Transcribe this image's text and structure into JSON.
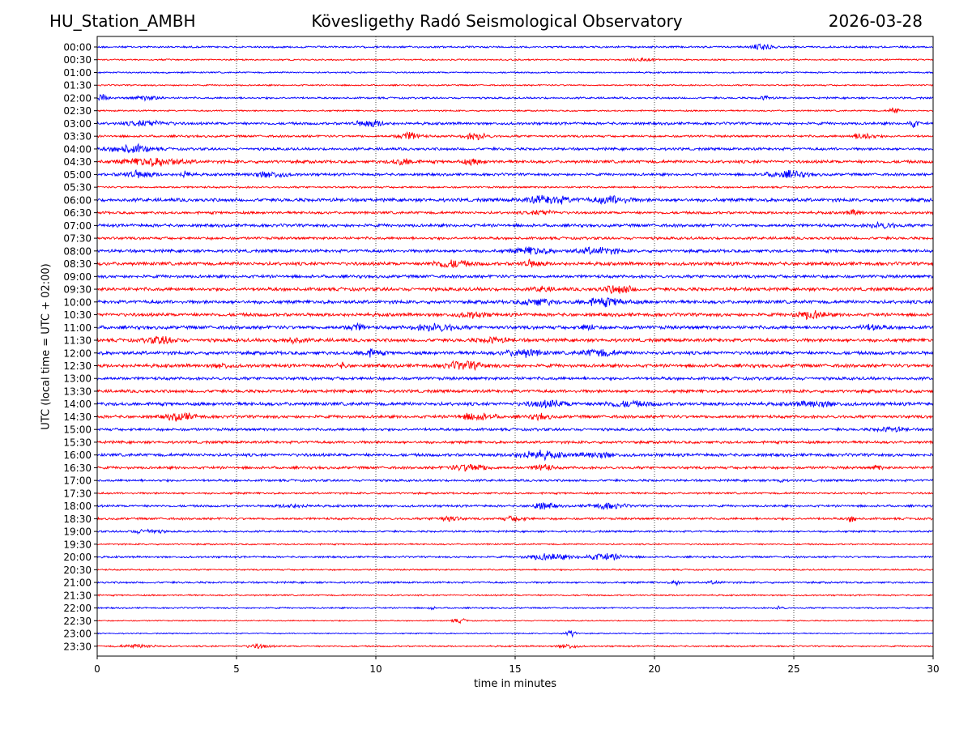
{
  "header": {
    "station": "HU_Station_AMBH",
    "title": "Kövesligethy Radó Seismological Observatory",
    "date": "2026-03-28"
  },
  "chart_data": {
    "type": "line",
    "title": "Kövesligethy Radó Seismological Observatory",
    "xlabel": "time in minutes",
    "ylabel": "UTC (local time = UTC + 02:00)",
    "xlim": [
      0,
      30
    ],
    "xticks": [
      0,
      5,
      10,
      15,
      20,
      25,
      30
    ],
    "grid": "vertical dotted at x ticks",
    "colors": [
      "#0000ff",
      "#ff0000"
    ],
    "rows": [
      "00:00",
      "00:30",
      "01:00",
      "01:30",
      "02:00",
      "02:30",
      "03:00",
      "03:30",
      "04:00",
      "04:30",
      "05:00",
      "05:30",
      "06:00",
      "06:30",
      "07:00",
      "07:30",
      "08:00",
      "08:30",
      "09:00",
      "09:30",
      "10:00",
      "10:30",
      "11:00",
      "11:30",
      "12:00",
      "12:30",
      "13:00",
      "13:30",
      "14:00",
      "14:30",
      "15:00",
      "15:30",
      "16:00",
      "16:30",
      "17:00",
      "17:30",
      "18:00",
      "18:30",
      "19:00",
      "19:30",
      "20:00",
      "20:30",
      "21:00",
      "21:30",
      "22:00",
      "22:30",
      "23:00",
      "23:30"
    ],
    "background_level": [
      0.25,
      0.2,
      0.2,
      0.2,
      0.25,
      0.2,
      0.35,
      0.3,
      0.35,
      0.4,
      0.35,
      0.25,
      0.45,
      0.35,
      0.4,
      0.35,
      0.4,
      0.45,
      0.4,
      0.45,
      0.45,
      0.45,
      0.45,
      0.45,
      0.45,
      0.45,
      0.4,
      0.4,
      0.45,
      0.4,
      0.35,
      0.35,
      0.4,
      0.35,
      0.3,
      0.25,
      0.3,
      0.3,
      0.25,
      0.2,
      0.25,
      0.2,
      0.25,
      0.2,
      0.2,
      0.15,
      0.15,
      0.2
    ],
    "events": [
      {
        "row": "00:00",
        "t": 23.9,
        "amp": 1.0,
        "dur": 0.6
      },
      {
        "row": "00:30",
        "t": 19.5,
        "amp": 0.35,
        "dur": 0.8
      },
      {
        "row": "02:00",
        "t": 0.2,
        "amp": 0.9,
        "dur": 0.3
      },
      {
        "row": "02:00",
        "t": 1.8,
        "amp": 0.5,
        "dur": 1.0
      },
      {
        "row": "02:00",
        "t": 24.0,
        "amp": 0.5,
        "dur": 0.4
      },
      {
        "row": "02:30",
        "t": 28.6,
        "amp": 1.0,
        "dur": 0.3
      },
      {
        "row": "03:00",
        "t": 1.8,
        "amp": 0.6,
        "dur": 1.5
      },
      {
        "row": "03:00",
        "t": 9.8,
        "amp": 0.8,
        "dur": 1.0
      },
      {
        "row": "03:00",
        "t": 29.3,
        "amp": 1.0,
        "dur": 0.3
      },
      {
        "row": "03:30",
        "t": 11.2,
        "amp": 0.9,
        "dur": 0.8
      },
      {
        "row": "03:30",
        "t": 13.6,
        "amp": 0.8,
        "dur": 0.8
      },
      {
        "row": "03:30",
        "t": 27.5,
        "amp": 0.9,
        "dur": 0.7
      },
      {
        "row": "04:00",
        "t": 1.2,
        "amp": 1.0,
        "dur": 1.4
      },
      {
        "row": "04:30",
        "t": 2.0,
        "amp": 1.0,
        "dur": 2.0
      },
      {
        "row": "04:30",
        "t": 11.0,
        "amp": 0.8,
        "dur": 0.8
      },
      {
        "row": "04:30",
        "t": 13.5,
        "amp": 0.6,
        "dur": 0.8
      },
      {
        "row": "05:00",
        "t": 1.5,
        "amp": 0.8,
        "dur": 1.2
      },
      {
        "row": "05:00",
        "t": 3.2,
        "amp": 0.8,
        "dur": 0.4
      },
      {
        "row": "05:00",
        "t": 6.2,
        "amp": 0.7,
        "dur": 1.2
      },
      {
        "row": "05:00",
        "t": 24.8,
        "amp": 0.8,
        "dur": 1.4
      },
      {
        "row": "06:00",
        "t": 16.2,
        "amp": 1.0,
        "dur": 1.5
      },
      {
        "row": "06:00",
        "t": 18.5,
        "amp": 0.9,
        "dur": 1.3
      },
      {
        "row": "06:30",
        "t": 16.0,
        "amp": 0.5,
        "dur": 1.0
      },
      {
        "row": "06:30",
        "t": 27.2,
        "amp": 0.6,
        "dur": 0.5
      },
      {
        "row": "07:00",
        "t": 28.2,
        "amp": 0.6,
        "dur": 1.0
      },
      {
        "row": "08:00",
        "t": 15.6,
        "amp": 0.9,
        "dur": 1.2
      },
      {
        "row": "08:00",
        "t": 18.0,
        "amp": 0.8,
        "dur": 1.4
      },
      {
        "row": "08:30",
        "t": 12.7,
        "amp": 0.9,
        "dur": 1.2
      },
      {
        "row": "08:30",
        "t": 15.6,
        "amp": 0.7,
        "dur": 0.8
      },
      {
        "row": "09:30",
        "t": 16.0,
        "amp": 0.6,
        "dur": 0.6
      },
      {
        "row": "09:30",
        "t": 18.7,
        "amp": 1.0,
        "dur": 1.0
      },
      {
        "row": "10:00",
        "t": 15.8,
        "amp": 0.9,
        "dur": 1.0
      },
      {
        "row": "10:00",
        "t": 18.2,
        "amp": 0.9,
        "dur": 1.6
      },
      {
        "row": "10:30",
        "t": 13.5,
        "amp": 0.6,
        "dur": 1.0
      },
      {
        "row": "10:30",
        "t": 25.6,
        "amp": 1.0,
        "dur": 1.0
      },
      {
        "row": "11:00",
        "t": 9.3,
        "amp": 0.8,
        "dur": 0.6
      },
      {
        "row": "11:00",
        "t": 12.2,
        "amp": 0.8,
        "dur": 1.4
      },
      {
        "row": "11:00",
        "t": 17.6,
        "amp": 0.7,
        "dur": 0.5
      },
      {
        "row": "11:00",
        "t": 27.8,
        "amp": 0.6,
        "dur": 0.8
      },
      {
        "row": "11:30",
        "t": 2.3,
        "amp": 0.8,
        "dur": 1.0
      },
      {
        "row": "11:30",
        "t": 7.0,
        "amp": 0.6,
        "dur": 0.8
      },
      {
        "row": "11:30",
        "t": 14.2,
        "amp": 0.6,
        "dur": 1.0
      },
      {
        "row": "12:00",
        "t": 9.8,
        "amp": 0.8,
        "dur": 0.8
      },
      {
        "row": "12:00",
        "t": 15.3,
        "amp": 0.9,
        "dur": 1.2
      },
      {
        "row": "12:00",
        "t": 18.0,
        "amp": 0.8,
        "dur": 1.2
      },
      {
        "row": "12:30",
        "t": 4.5,
        "amp": 0.6,
        "dur": 0.5
      },
      {
        "row": "12:30",
        "t": 8.8,
        "amp": 0.6,
        "dur": 0.3
      },
      {
        "row": "12:30",
        "t": 13.2,
        "amp": 0.9,
        "dur": 1.4
      },
      {
        "row": "14:00",
        "t": 16.2,
        "amp": 0.7,
        "dur": 1.4
      },
      {
        "row": "14:00",
        "t": 19.0,
        "amp": 0.6,
        "dur": 1.6
      },
      {
        "row": "14:00",
        "t": 25.8,
        "amp": 0.6,
        "dur": 1.4
      },
      {
        "row": "14:30",
        "t": 3.0,
        "amp": 0.9,
        "dur": 1.0
      },
      {
        "row": "14:30",
        "t": 13.6,
        "amp": 0.8,
        "dur": 1.2
      },
      {
        "row": "14:30",
        "t": 15.9,
        "amp": 0.6,
        "dur": 0.7
      },
      {
        "row": "15:00",
        "t": 28.5,
        "amp": 0.5,
        "dur": 1.0
      },
      {
        "row": "16:00",
        "t": 15.8,
        "amp": 0.9,
        "dur": 1.6
      },
      {
        "row": "16:00",
        "t": 18.0,
        "amp": 0.6,
        "dur": 1.2
      },
      {
        "row": "16:30",
        "t": 13.4,
        "amp": 0.9,
        "dur": 1.2
      },
      {
        "row": "16:30",
        "t": 16.0,
        "amp": 0.9,
        "dur": 0.6
      },
      {
        "row": "16:30",
        "t": 28.0,
        "amp": 0.6,
        "dur": 0.3
      },
      {
        "row": "17:00",
        "t": 24.5,
        "amp": 0.4,
        "dur": 0.3
      },
      {
        "row": "18:00",
        "t": 16.0,
        "amp": 0.8,
        "dur": 0.8
      },
      {
        "row": "18:00",
        "t": 18.3,
        "amp": 0.7,
        "dur": 1.2
      },
      {
        "row": "18:00",
        "t": 7.0,
        "amp": 0.4,
        "dur": 1.0
      },
      {
        "row": "18:30",
        "t": 12.6,
        "amp": 0.6,
        "dur": 0.8
      },
      {
        "row": "18:30",
        "t": 15.0,
        "amp": 0.5,
        "dur": 0.8
      },
      {
        "row": "18:30",
        "t": 27.1,
        "amp": 0.9,
        "dur": 0.3
      },
      {
        "row": "19:00",
        "t": 1.8,
        "amp": 0.5,
        "dur": 1.0
      },
      {
        "row": "20:00",
        "t": 16.2,
        "amp": 0.8,
        "dur": 1.4
      },
      {
        "row": "20:00",
        "t": 18.2,
        "amp": 0.8,
        "dur": 1.4
      },
      {
        "row": "21:00",
        "t": 20.8,
        "amp": 0.5,
        "dur": 0.4
      },
      {
        "row": "21:00",
        "t": 22.2,
        "amp": 0.4,
        "dur": 0.4
      },
      {
        "row": "22:00",
        "t": 12.0,
        "amp": 0.4,
        "dur": 0.2
      },
      {
        "row": "22:00",
        "t": 24.5,
        "amp": 0.4,
        "dur": 0.3
      },
      {
        "row": "22:30",
        "t": 13.0,
        "amp": 0.5,
        "dur": 0.5
      },
      {
        "row": "23:00",
        "t": 17.0,
        "amp": 0.8,
        "dur": 0.4
      },
      {
        "row": "23:30",
        "t": 1.5,
        "amp": 0.4,
        "dur": 1.2
      },
      {
        "row": "23:30",
        "t": 5.8,
        "amp": 0.5,
        "dur": 0.8
      },
      {
        "row": "23:30",
        "t": 16.9,
        "amp": 0.6,
        "dur": 0.6
      }
    ]
  }
}
